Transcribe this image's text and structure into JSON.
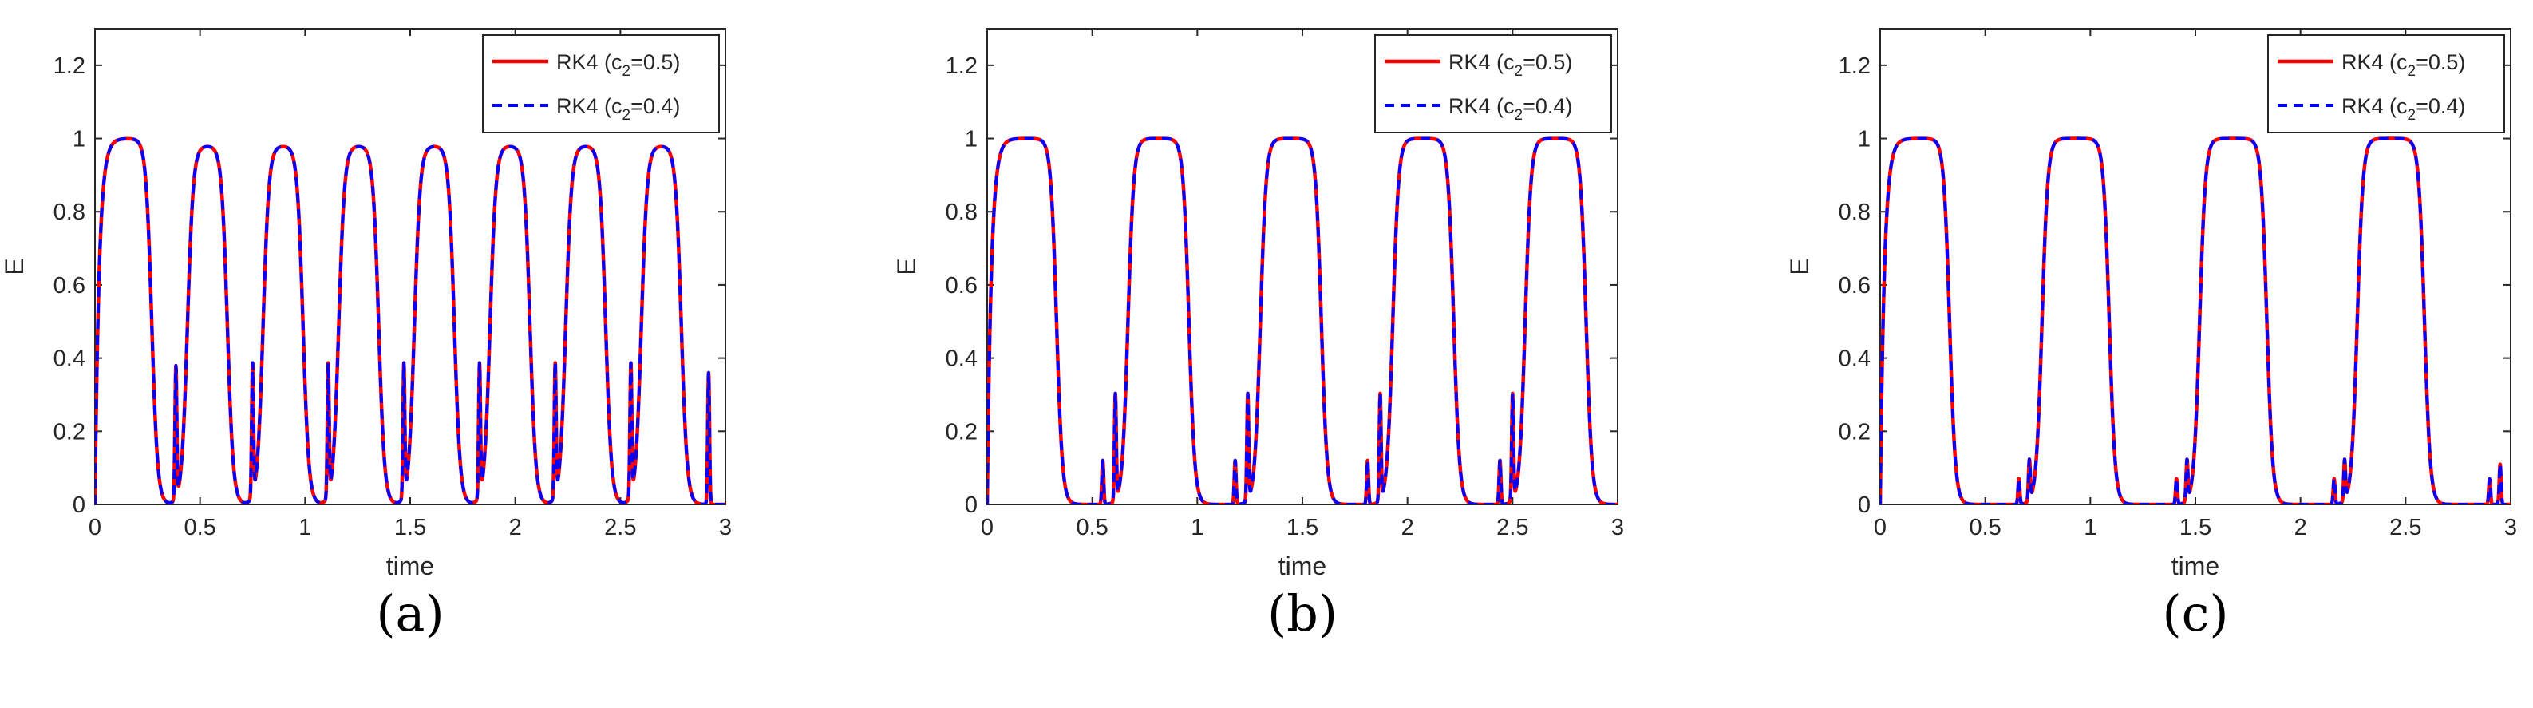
{
  "figure": {
    "panels": [
      "a",
      "b",
      "c"
    ]
  },
  "colors": {
    "rk4_c05": "#ff0000",
    "rk4_c04": "#0000ff",
    "axis": "#262626"
  },
  "chart_data": [
    {
      "type": "line",
      "panel_label": "(a)",
      "xlabel": "time",
      "ylabel": "E",
      "xlim": [
        0,
        3
      ],
      "ylim": [
        0,
        1.3
      ],
      "xticks": [
        0,
        0.5,
        1,
        1.5,
        2,
        2.5,
        3
      ],
      "xtick_labels": [
        "0",
        "0.5",
        "1",
        "1.5",
        "2",
        "2.5",
        "3"
      ],
      "yticks": [
        0,
        0.2,
        0.4,
        0.6,
        0.8,
        1,
        1.2
      ],
      "ytick_labels": [
        "0",
        "0.2",
        "0.4",
        "0.6",
        "0.8",
        "1",
        "1.2"
      ],
      "legend_position": "top-right",
      "series": [
        {
          "name_prefix": "RK4 (c",
          "name_sub": "2",
          "name_suffix": "=0.5)",
          "color": "#ff0000",
          "style": "solid"
        },
        {
          "name_prefix": "RK4 (c",
          "name_sub": "2",
          "name_suffix": "=0.4)",
          "color": "#0000ff",
          "style": "dashed"
        }
      ],
      "pulses": [
        {
          "start": 0.0,
          "end": 0.27,
          "peak": 1.0
        },
        {
          "start": 0.44,
          "end": 0.63,
          "peak": 0.98
        },
        {
          "start": 0.8,
          "end": 0.99,
          "peak": 0.98
        },
        {
          "start": 1.16,
          "end": 1.35,
          "peak": 0.98
        },
        {
          "start": 1.52,
          "end": 1.71,
          "peak": 0.98
        },
        {
          "start": 1.88,
          "end": 2.07,
          "peak": 0.98
        },
        {
          "start": 2.24,
          "end": 2.43,
          "peak": 0.98
        },
        {
          "start": 2.6,
          "end": 2.79,
          "peak": 0.98
        }
      ],
      "spikes": [
        {
          "t": 0.385,
          "h": 0.36
        },
        {
          "t": 0.75,
          "h": 0.36
        },
        {
          "t": 1.11,
          "h": 0.36
        },
        {
          "t": 1.47,
          "h": 0.36
        },
        {
          "t": 1.83,
          "h": 0.36
        },
        {
          "t": 2.19,
          "h": 0.36
        },
        {
          "t": 2.55,
          "h": 0.36
        },
        {
          "t": 2.92,
          "h": 0.36
        }
      ]
    },
    {
      "type": "line",
      "panel_label": "(b)",
      "xlabel": "time",
      "ylabel": "E",
      "xlim": [
        0,
        3
      ],
      "ylim": [
        0,
        1.3
      ],
      "xticks": [
        0,
        0.5,
        1,
        1.5,
        2,
        2.5,
        3
      ],
      "xtick_labels": [
        "0",
        "0.5",
        "1",
        "1.5",
        "2",
        "2.5",
        "3"
      ],
      "yticks": [
        0,
        0.2,
        0.4,
        0.6,
        0.8,
        1,
        1.2
      ],
      "ytick_labels": [
        "0",
        "0.2",
        "0.4",
        "0.6",
        "0.8",
        "1",
        "1.2"
      ],
      "legend_position": "top-right",
      "series": [
        {
          "name_prefix": "RK4 (c",
          "name_sub": "2",
          "name_suffix": "=0.5)",
          "color": "#ff0000",
          "style": "solid"
        },
        {
          "name_prefix": "RK4 (c",
          "name_sub": "2",
          "name_suffix": "=0.4)",
          "color": "#0000ff",
          "style": "dashed"
        }
      ],
      "pulses": [
        {
          "start": 0.0,
          "end": 0.33,
          "peak": 1.0
        },
        {
          "start": 0.67,
          "end": 0.96,
          "peak": 1.0
        },
        {
          "start": 1.3,
          "end": 1.59,
          "peak": 1.0
        },
        {
          "start": 1.93,
          "end": 2.22,
          "peak": 1.0
        },
        {
          "start": 2.56,
          "end": 2.85,
          "peak": 1.0
        }
      ],
      "spikes": [
        {
          "t": 0.55,
          "h": 0.12
        },
        {
          "t": 0.61,
          "h": 0.29
        },
        {
          "t": 1.18,
          "h": 0.12
        },
        {
          "t": 1.24,
          "h": 0.29
        },
        {
          "t": 1.81,
          "h": 0.12
        },
        {
          "t": 1.87,
          "h": 0.29
        },
        {
          "t": 2.44,
          "h": 0.12
        },
        {
          "t": 2.5,
          "h": 0.29
        }
      ]
    },
    {
      "type": "line",
      "panel_label": "(c)",
      "xlabel": "time",
      "ylabel": "E",
      "xlim": [
        0,
        3
      ],
      "ylim": [
        0,
        1.3
      ],
      "xticks": [
        0,
        0.5,
        1,
        1.5,
        2,
        2.5,
        3
      ],
      "xtick_labels": [
        "0",
        "0.5",
        "1",
        "1.5",
        "2",
        "2.5",
        "3"
      ],
      "yticks": [
        0,
        0.2,
        0.4,
        0.6,
        0.8,
        1,
        1.2
      ],
      "ytick_labels": [
        "0",
        "0.2",
        "0.4",
        "0.6",
        "0.8",
        "1",
        "1.2"
      ],
      "legend_position": "top-right",
      "series": [
        {
          "name_prefix": "RK4 (c",
          "name_sub": "2",
          "name_suffix": "=0.5)",
          "color": "#ff0000",
          "style": "solid"
        },
        {
          "name_prefix": "RK4 (c",
          "name_sub": "2",
          "name_suffix": "=0.4)",
          "color": "#0000ff",
          "style": "dashed"
        }
      ],
      "pulses": [
        {
          "start": 0.0,
          "end": 0.33,
          "peak": 1.0
        },
        {
          "start": 0.77,
          "end": 1.09,
          "peak": 1.0
        },
        {
          "start": 1.52,
          "end": 1.84,
          "peak": 1.0
        },
        {
          "start": 2.27,
          "end": 2.59,
          "peak": 1.0
        }
      ],
      "spikes": [
        {
          "t": 0.66,
          "h": 0.07
        },
        {
          "t": 0.71,
          "h": 0.11
        },
        {
          "t": 1.41,
          "h": 0.07
        },
        {
          "t": 1.46,
          "h": 0.11
        },
        {
          "t": 2.16,
          "h": 0.07
        },
        {
          "t": 2.21,
          "h": 0.11
        },
        {
          "t": 2.9,
          "h": 0.07
        },
        {
          "t": 2.95,
          "h": 0.11
        }
      ]
    }
  ]
}
